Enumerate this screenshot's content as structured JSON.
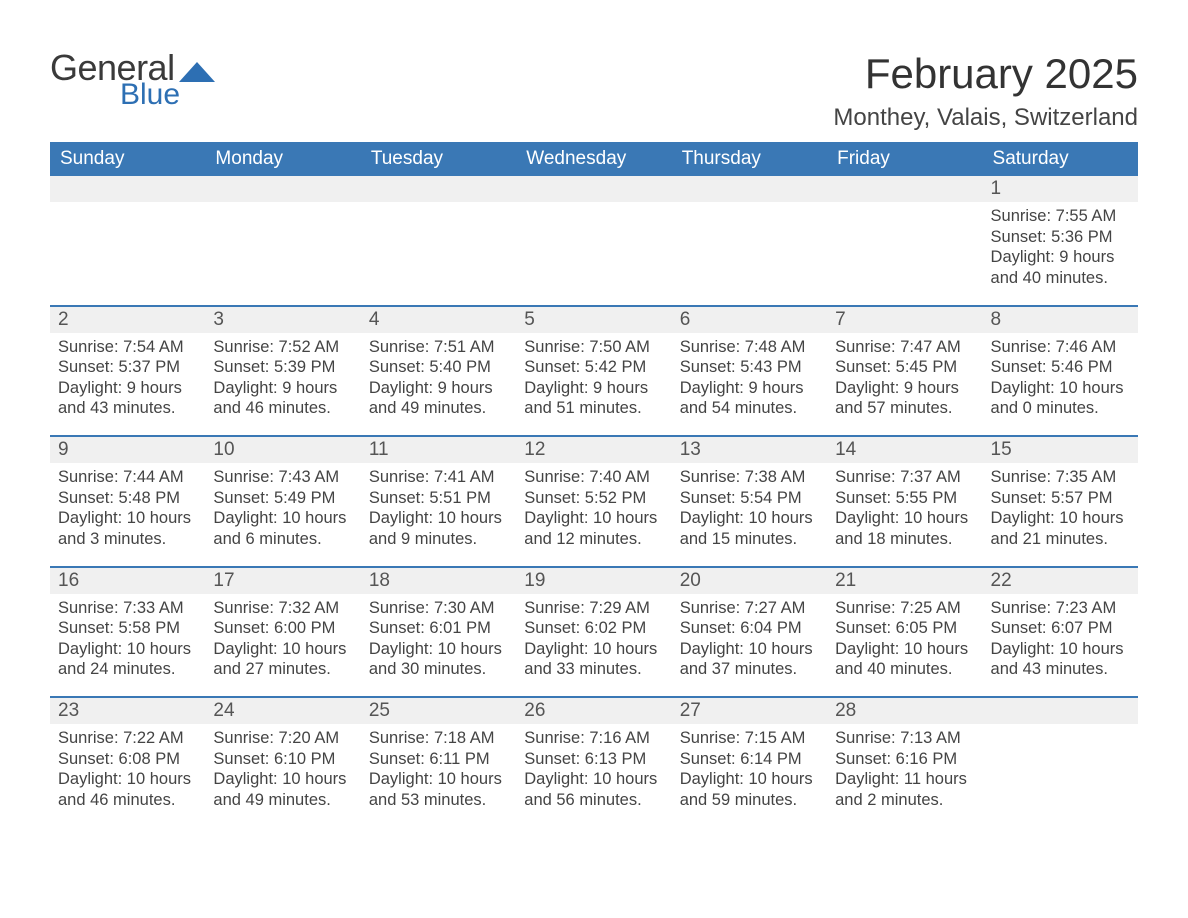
{
  "logo": {
    "line1": "General",
    "line2": "Blue"
  },
  "title": "February 2025",
  "location": "Monthey, Valais, Switzerland",
  "colors": {
    "header_blue": "#3a78b5",
    "row_border_blue": "#3a78b5",
    "daynum_bg": "#f0f0f0",
    "logo_blue": "#2d6fb3",
    "background": "#ffffff",
    "text": "#333333"
  },
  "typography": {
    "title_fontsize": 42,
    "location_fontsize": 24,
    "dow_fontsize": 19,
    "daynum_fontsize": 19,
    "body_fontsize": 16.5,
    "font_family": "Arial"
  },
  "days_of_week": [
    "Sunday",
    "Monday",
    "Tuesday",
    "Wednesday",
    "Thursday",
    "Friday",
    "Saturday"
  ],
  "labels": {
    "sunrise_prefix": "Sunrise: ",
    "sunset_prefix": "Sunset: ",
    "daylight_prefix": "Daylight: "
  },
  "weeks": [
    [
      {
        "empty": true
      },
      {
        "empty": true
      },
      {
        "empty": true
      },
      {
        "empty": true
      },
      {
        "empty": true
      },
      {
        "empty": true
      },
      {
        "num": "1",
        "sunrise": "7:55 AM",
        "sunset": "5:36 PM",
        "daylight": "9 hours and 40 minutes."
      }
    ],
    [
      {
        "num": "2",
        "sunrise": "7:54 AM",
        "sunset": "5:37 PM",
        "daylight": "9 hours and 43 minutes."
      },
      {
        "num": "3",
        "sunrise": "7:52 AM",
        "sunset": "5:39 PM",
        "daylight": "9 hours and 46 minutes."
      },
      {
        "num": "4",
        "sunrise": "7:51 AM",
        "sunset": "5:40 PM",
        "daylight": "9 hours and 49 minutes."
      },
      {
        "num": "5",
        "sunrise": "7:50 AM",
        "sunset": "5:42 PM",
        "daylight": "9 hours and 51 minutes."
      },
      {
        "num": "6",
        "sunrise": "7:48 AM",
        "sunset": "5:43 PM",
        "daylight": "9 hours and 54 minutes."
      },
      {
        "num": "7",
        "sunrise": "7:47 AM",
        "sunset": "5:45 PM",
        "daylight": "9 hours and 57 minutes."
      },
      {
        "num": "8",
        "sunrise": "7:46 AM",
        "sunset": "5:46 PM",
        "daylight": "10 hours and 0 minutes."
      }
    ],
    [
      {
        "num": "9",
        "sunrise": "7:44 AM",
        "sunset": "5:48 PM",
        "daylight": "10 hours and 3 minutes."
      },
      {
        "num": "10",
        "sunrise": "7:43 AM",
        "sunset": "5:49 PM",
        "daylight": "10 hours and 6 minutes."
      },
      {
        "num": "11",
        "sunrise": "7:41 AM",
        "sunset": "5:51 PM",
        "daylight": "10 hours and 9 minutes."
      },
      {
        "num": "12",
        "sunrise": "7:40 AM",
        "sunset": "5:52 PM",
        "daylight": "10 hours and 12 minutes."
      },
      {
        "num": "13",
        "sunrise": "7:38 AM",
        "sunset": "5:54 PM",
        "daylight": "10 hours and 15 minutes."
      },
      {
        "num": "14",
        "sunrise": "7:37 AM",
        "sunset": "5:55 PM",
        "daylight": "10 hours and 18 minutes."
      },
      {
        "num": "15",
        "sunrise": "7:35 AM",
        "sunset": "5:57 PM",
        "daylight": "10 hours and 21 minutes."
      }
    ],
    [
      {
        "num": "16",
        "sunrise": "7:33 AM",
        "sunset": "5:58 PM",
        "daylight": "10 hours and 24 minutes."
      },
      {
        "num": "17",
        "sunrise": "7:32 AM",
        "sunset": "6:00 PM",
        "daylight": "10 hours and 27 minutes."
      },
      {
        "num": "18",
        "sunrise": "7:30 AM",
        "sunset": "6:01 PM",
        "daylight": "10 hours and 30 minutes."
      },
      {
        "num": "19",
        "sunrise": "7:29 AM",
        "sunset": "6:02 PM",
        "daylight": "10 hours and 33 minutes."
      },
      {
        "num": "20",
        "sunrise": "7:27 AM",
        "sunset": "6:04 PM",
        "daylight": "10 hours and 37 minutes."
      },
      {
        "num": "21",
        "sunrise": "7:25 AM",
        "sunset": "6:05 PM",
        "daylight": "10 hours and 40 minutes."
      },
      {
        "num": "22",
        "sunrise": "7:23 AM",
        "sunset": "6:07 PM",
        "daylight": "10 hours and 43 minutes."
      }
    ],
    [
      {
        "num": "23",
        "sunrise": "7:22 AM",
        "sunset": "6:08 PM",
        "daylight": "10 hours and 46 minutes."
      },
      {
        "num": "24",
        "sunrise": "7:20 AM",
        "sunset": "6:10 PM",
        "daylight": "10 hours and 49 minutes."
      },
      {
        "num": "25",
        "sunrise": "7:18 AM",
        "sunset": "6:11 PM",
        "daylight": "10 hours and 53 minutes."
      },
      {
        "num": "26",
        "sunrise": "7:16 AM",
        "sunset": "6:13 PM",
        "daylight": "10 hours and 56 minutes."
      },
      {
        "num": "27",
        "sunrise": "7:15 AM",
        "sunset": "6:14 PM",
        "daylight": "10 hours and 59 minutes."
      },
      {
        "num": "28",
        "sunrise": "7:13 AM",
        "sunset": "6:16 PM",
        "daylight": "11 hours and 2 minutes."
      },
      {
        "empty": true
      }
    ]
  ]
}
